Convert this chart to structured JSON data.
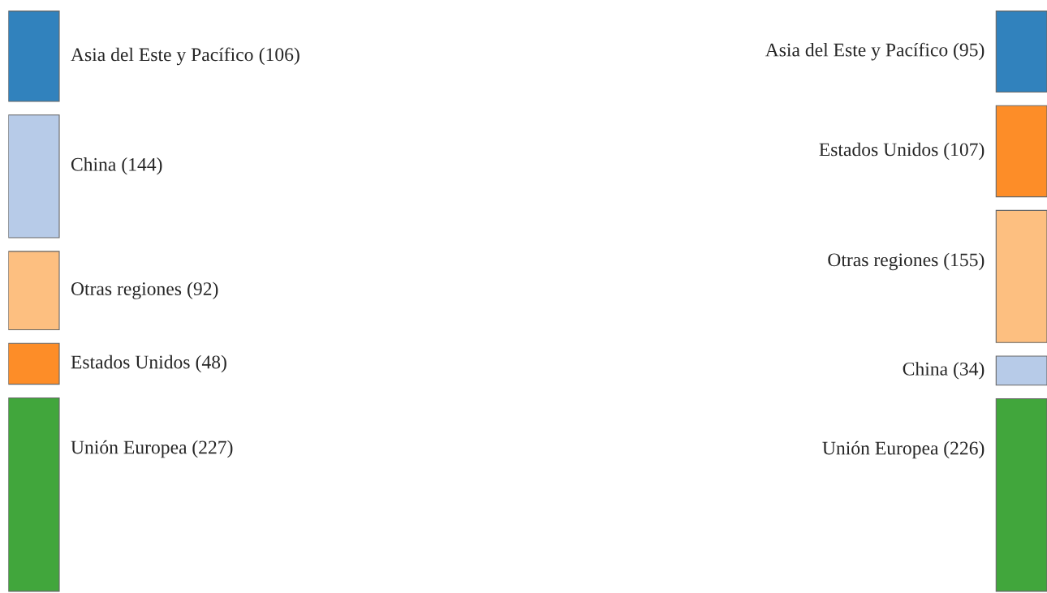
{
  "chart_data": [
    {
      "type": "other",
      "categories": [
        "Asia del Este y Pacífico",
        "China",
        "Otras regiones",
        "Estados Unidos",
        "Unión Europea"
      ],
      "values": [
        106,
        144,
        92,
        48,
        227
      ],
      "value_labels": [
        "(106)",
        "(144)",
        "(92)",
        "(48)",
        "(227)"
      ],
      "colors": [
        "#3182bd",
        "#b7cbe8",
        "#fdbf80",
        "#fd8d28",
        "#41a63c"
      ]
    },
    {
      "type": "other",
      "categories": [
        "Asia del Este y Pacífico",
        "Estados Unidos",
        "Otras regiones",
        "China",
        "Unión Europea"
      ],
      "values": [
        95,
        107,
        155,
        34,
        226
      ],
      "value_labels": [
        "(95)",
        "(107)",
        "(155)",
        "(34)",
        "(226)"
      ],
      "colors": [
        "#3182bd",
        "#fd8d28",
        "#fdbf80",
        "#b7cbe8",
        "#41a63c"
      ]
    }
  ]
}
